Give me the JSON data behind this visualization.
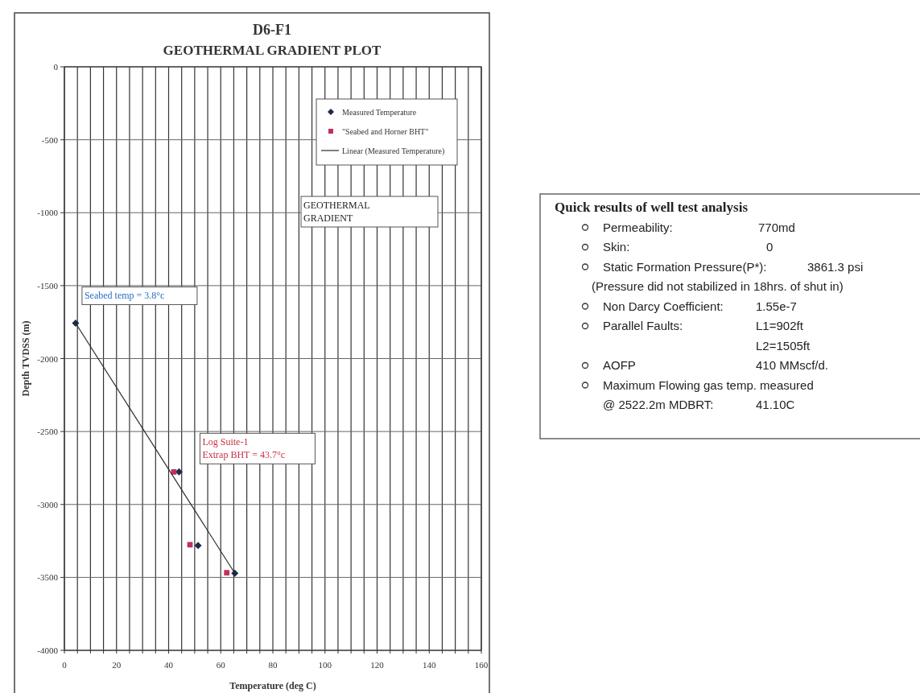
{
  "chart_data": [
    {
      "type": "scatter",
      "title": "D6-F1",
      "subtitle": "GEOTHERMAL GRADIENT PLOT",
      "xlabel": "Temperature (deg C)",
      "ylabel": "Depth TVDSS (m)",
      "xlim": [
        0,
        160
      ],
      "ylim": [
        -4000,
        0
      ],
      "xticks": [
        0,
        {
          "value": 5,
          "label": null
        },
        {
          "value": 10,
          "label": null
        },
        {
          "value": 15,
          "label": null
        },
        20,
        {
          "value": 25,
          "label": null
        },
        {
          "value": 30,
          "label": null
        },
        {
          "value": 35,
          "label": null
        },
        40,
        {
          "value": 45,
          "label": null
        },
        {
          "value": 50,
          "label": null
        },
        {
          "value": 55,
          "label": null
        },
        60,
        {
          "value": 65,
          "label": null
        },
        {
          "value": 70,
          "label": null
        },
        {
          "value": 75,
          "label": null
        },
        80,
        {
          "value": 85,
          "label": null
        },
        {
          "value": 90,
          "label": null
        },
        {
          "value": 95,
          "label": null
        },
        100,
        {
          "value": 105,
          "label": null
        },
        {
          "value": 110,
          "label": null
        },
        {
          "value": 115,
          "label": null
        },
        120,
        {
          "value": 125,
          "label": null
        },
        {
          "value": 130,
          "label": null
        },
        {
          "value": 135,
          "label": null
        },
        140,
        {
          "value": 145,
          "label": null
        },
        {
          "value": 150,
          "label": null
        },
        {
          "value": 155,
          "label": null
        },
        160
      ],
      "yticks": [
        0,
        -500,
        -1000,
        -1500,
        -2000,
        -2500,
        -3000,
        -3500,
        -4000
      ],
      "grid": true,
      "legend": "top right",
      "series": [
        {
          "name": "Measured Temperature",
          "type": "scatter",
          "marker": "diamond",
          "color": "#1c2a4c",
          "x": [
            4.3,
            44,
            51.3,
            65.4
          ],
          "values": [
            -1757,
            -2777,
            -3282,
            -3472
          ]
        },
        {
          "name": "\"Seabed and Horner BHT\"",
          "type": "scatter",
          "marker": "square",
          "color": "#c2305c",
          "x": [
            42,
            48.2,
            62.3
          ],
          "values": [
            -2777,
            -3276,
            -3468
          ]
        },
        {
          "name": "Linear (Measured Temperature)",
          "type": "line",
          "marker": "none",
          "color": "#2a2a2a",
          "x": [
            4.3,
            65.4
          ],
          "values": [
            -1757,
            -3472
          ]
        }
      ],
      "annotations": [
        {
          "text": "Seabed temp = 3.8°c",
          "x": 4.3,
          "y": -1757
        },
        {
          "text": "Log Suite-1\nExtrap BHT = 43.7°c",
          "x": 44,
          "y": -2777
        },
        "GEOTHERMAL\nGRADIENT"
      ]
    },
    {
      "type": "other",
      "title": "Quick results of well test analysis",
      "annotations": [
        "Permeability:",
        "770md",
        "Skin:",
        "0",
        "Static Formation Pressure(P*):",
        "3861.3 psi",
        "(Pressure did not stabilized in 18hrs. of shut in)",
        "Non Darcy Coefficient:",
        "1.55e-7",
        "Parallel Faults:",
        "L1=902ft",
        "L2=1505ft",
        "AOFP",
        "410 MMscf/d.",
        "Maximum Flowing gas temp. measured",
        "@ 2522.2m MDBRT:",
        "41.10C"
      ]
    }
  ]
}
